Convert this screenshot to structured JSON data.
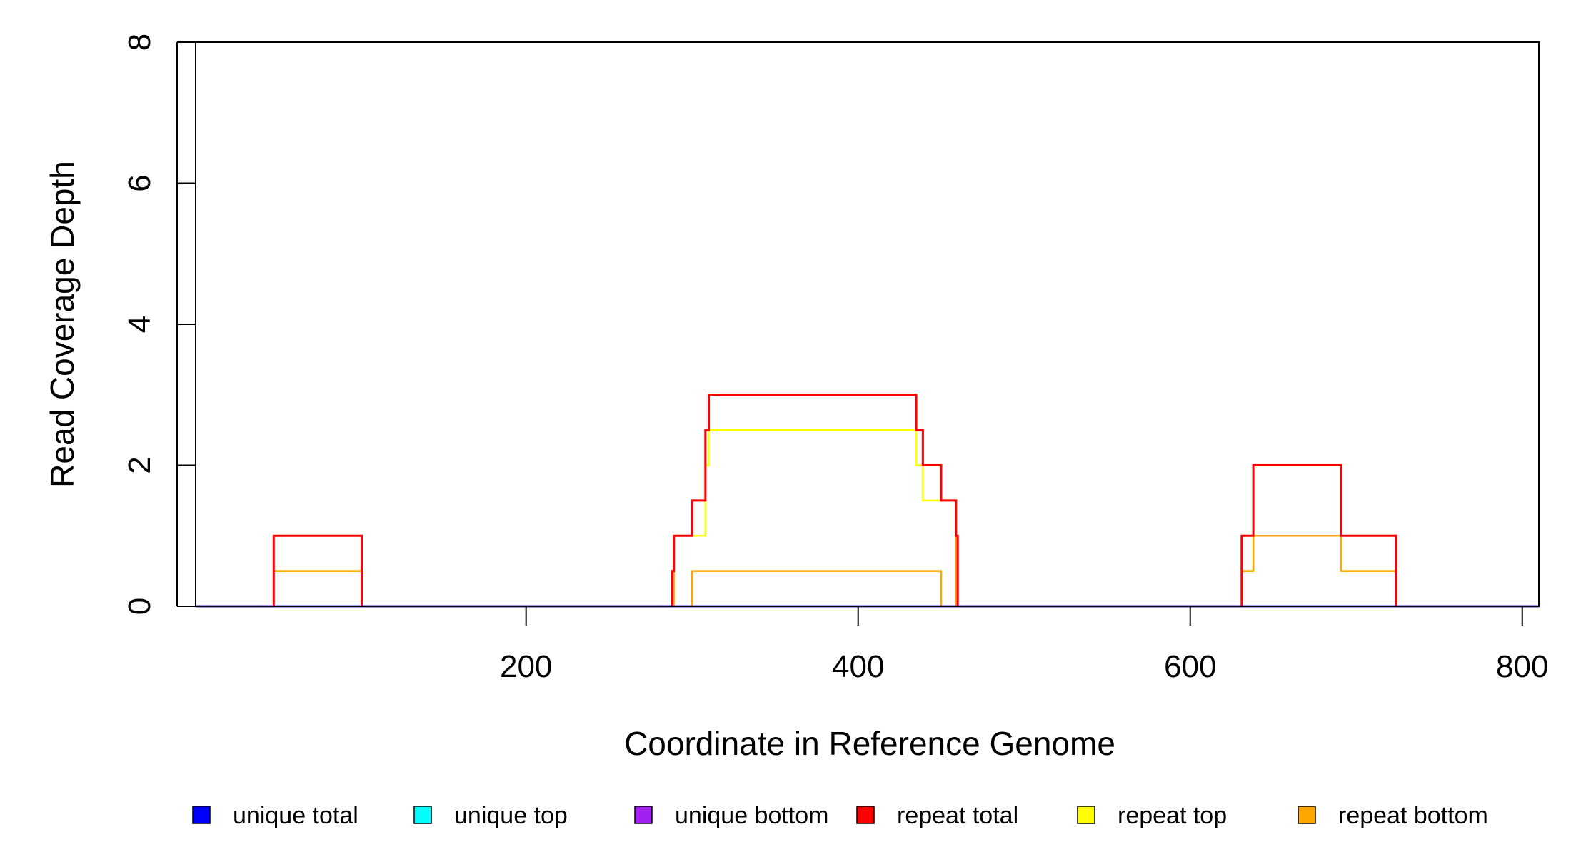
{
  "chart_data": {
    "type": "line",
    "title": "",
    "xlabel": "Coordinate in Reference Genome",
    "ylabel": "Read Coverage Depth",
    "xlim": [
      1,
      810
    ],
    "ylim": [
      0,
      8
    ],
    "x_ticks": [
      200,
      400,
      600,
      800
    ],
    "y_ticks": [
      0,
      2,
      4,
      6,
      8
    ],
    "grid": false,
    "legend_position": "bottom",
    "series": [
      {
        "name": "unique total",
        "color": "#0000FF",
        "points": [
          [
            1,
            0
          ],
          [
            810,
            0
          ]
        ]
      },
      {
        "name": "unique top",
        "color": "#00FFFF",
        "points": [
          [
            1,
            0
          ],
          [
            810,
            0
          ]
        ]
      },
      {
        "name": "unique bottom",
        "color": "#A020F0",
        "points": [
          [
            1,
            0
          ],
          [
            810,
            0
          ]
        ]
      },
      {
        "name": "repeat total",
        "color": "#FF0000",
        "points": [
          [
            1,
            0
          ],
          [
            48,
            0
          ],
          [
            48,
            1
          ],
          [
            101,
            1
          ],
          [
            101,
            0
          ],
          [
            288,
            0
          ],
          [
            288,
            0.5
          ],
          [
            289,
            0.5
          ],
          [
            289,
            1
          ],
          [
            300,
            1
          ],
          [
            300,
            1.5
          ],
          [
            308,
            1.5
          ],
          [
            308,
            2.5
          ],
          [
            310,
            2.5
          ],
          [
            310,
            3
          ],
          [
            435,
            3
          ],
          [
            435,
            2.5
          ],
          [
            439,
            2.5
          ],
          [
            439,
            2
          ],
          [
            450,
            2
          ],
          [
            450,
            1.5
          ],
          [
            459,
            1.5
          ],
          [
            459,
            1
          ],
          [
            460,
            1
          ],
          [
            460,
            0
          ],
          [
            631,
            0
          ],
          [
            631,
            1
          ],
          [
            638,
            1
          ],
          [
            638,
            2
          ],
          [
            691,
            2
          ],
          [
            691,
            1
          ],
          [
            724,
            1
          ],
          [
            724,
            0
          ],
          [
            810,
            0
          ]
        ]
      },
      {
        "name": "repeat top",
        "color": "#FFFF00",
        "points": [
          [
            1,
            0
          ],
          [
            48,
            0
          ],
          [
            48,
            0.5
          ],
          [
            101,
            0.5
          ],
          [
            101,
            0
          ],
          [
            288,
            0
          ],
          [
            288,
            0.5
          ],
          [
            289,
            0.5
          ],
          [
            289,
            1
          ],
          [
            308,
            1
          ],
          [
            308,
            2
          ],
          [
            310,
            2
          ],
          [
            310,
            2.5
          ],
          [
            435,
            2.5
          ],
          [
            435,
            2
          ],
          [
            439,
            2
          ],
          [
            439,
            1.5
          ],
          [
            459,
            1.5
          ],
          [
            459,
            1
          ],
          [
            460,
            1
          ],
          [
            460,
            0
          ],
          [
            631,
            0
          ],
          [
            631,
            0.5
          ],
          [
            638,
            0.5
          ],
          [
            638,
            1
          ],
          [
            691,
            1
          ],
          [
            691,
            0.5
          ],
          [
            724,
            0.5
          ],
          [
            724,
            0
          ],
          [
            810,
            0
          ]
        ]
      },
      {
        "name": "repeat bottom",
        "color": "#FFA500",
        "points": [
          [
            1,
            0
          ],
          [
            48,
            0
          ],
          [
            48,
            0.5
          ],
          [
            101,
            0.5
          ],
          [
            101,
            0
          ],
          [
            288,
            0
          ],
          [
            288,
            0.5
          ],
          [
            289,
            0.5
          ],
          [
            289,
            0
          ],
          [
            300,
            0
          ],
          [
            300,
            0.5
          ],
          [
            450,
            0.5
          ],
          [
            450,
            0
          ],
          [
            459,
            0
          ],
          [
            459,
            1
          ],
          [
            460,
            1
          ],
          [
            460,
            0
          ],
          [
            631,
            0
          ],
          [
            631,
            0.5
          ],
          [
            638,
            0.5
          ],
          [
            638,
            1
          ],
          [
            691,
            1
          ],
          [
            691,
            0.5
          ],
          [
            724,
            0.5
          ],
          [
            724,
            0
          ],
          [
            810,
            0
          ]
        ]
      }
    ],
    "legend": [
      {
        "label": "unique total",
        "color": "#0000FF"
      },
      {
        "label": "unique top",
        "color": "#00FFFF"
      },
      {
        "label": "unique bottom",
        "color": "#A020F0"
      },
      {
        "label": "repeat total",
        "color": "#FF0000"
      },
      {
        "label": "repeat top",
        "color": "#FFFF00"
      },
      {
        "label": "repeat bottom",
        "color": "#FFA500"
      }
    ]
  }
}
